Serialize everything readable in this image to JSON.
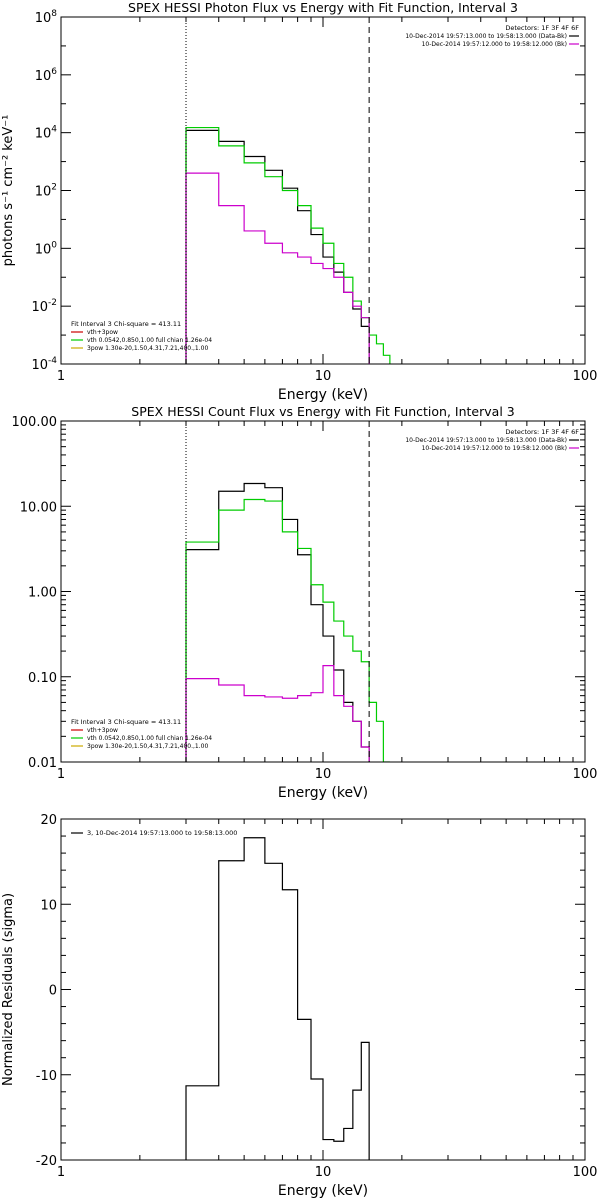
{
  "chart_data": [
    {
      "type": "line",
      "title": "SPEX HESSI Photon Flux vs Energy with Fit Function, Interval 3",
      "xlabel": "Energy (keV)",
      "ylabel": "photons s⁻¹ cm⁻² keV⁻¹",
      "xscale": "log",
      "yscale": "log",
      "xlim": [
        1,
        100
      ],
      "ylim": [
        0.0001,
        100000000
      ],
      "xticks": [
        {
          "v": 1,
          "t": "1"
        },
        {
          "v": 10,
          "t": "10"
        },
        {
          "v": 100,
          "t": "100"
        }
      ],
      "yticks": [
        {
          "v": 0.0001,
          "b": "10",
          "e": "-4"
        },
        {
          "v": 0.01,
          "b": "10",
          "e": "-2"
        },
        {
          "v": 1,
          "b": "10",
          "e": "0"
        },
        {
          "v": 100,
          "b": "10",
          "e": "2"
        },
        {
          "v": 10000,
          "b": "10",
          "e": "4"
        },
        {
          "v": 1000000,
          "b": "10",
          "e": "6"
        },
        {
          "v": 100000000,
          "b": "10",
          "e": "8"
        }
      ],
      "vlines": [
        {
          "x": 3,
          "style": "dotted"
        },
        {
          "x": 15,
          "style": "dashed"
        }
      ],
      "legend_right": {
        "placement": "top-right",
        "header": "Detectors: 1F 3F 4F 6F",
        "entries": [
          {
            "label": "10-Dec-2014 19:57:13.000 to 19:58:13.000 (Data-Bk)",
            "color": "#000000"
          },
          {
            "label": "10-Dec-2014 19:57:12.000 to 19:58:12.000 (Bk)",
            "color": "#cc00cc"
          }
        ]
      },
      "legend_left": {
        "placement": "bottom-left",
        "header": "Fit Interval 3   Chi-square = 413.11",
        "entries": [
          {
            "label": "vth+3pow",
            "color": "#cc0000"
          },
          {
            "label": "vth 0.0542,0.850,1.00  full chian 1.26e-04",
            "color": "#00cc00"
          },
          {
            "label": "3pow 1.30e-20,1.50,4.31,7.21,400.,1.00",
            "color": "#ccaa00"
          }
        ]
      },
      "series": [
        {
          "color": "#000000",
          "edges": [
            3,
            4,
            5,
            6,
            7,
            8,
            9,
            10,
            11,
            12,
            13,
            14,
            15
          ],
          "values": [
            12000,
            5000,
            1500,
            500,
            120,
            20,
            3,
            0.5,
            0.15,
            0.03,
            0.008,
            0.002
          ]
        },
        {
          "color": "#00cc00",
          "edges": [
            3,
            4,
            5,
            6,
            7,
            8,
            9,
            10,
            11,
            12,
            13,
            14,
            15,
            16,
            17,
            18
          ],
          "values": [
            15000,
            3500,
            900,
            300,
            100,
            30,
            5,
            1.5,
            0.3,
            0.1,
            0.015,
            0.004,
            0.001,
            0.0005,
            0.0002
          ]
        },
        {
          "color": "#cc00cc",
          "edges": [
            3,
            4,
            5,
            6,
            7,
            8,
            9,
            10,
            11,
            12,
            13,
            14,
            15
          ],
          "values": [
            400,
            30,
            4,
            1.5,
            0.7,
            0.5,
            0.3,
            0.2,
            0.1,
            0.03,
            0.01,
            0.004
          ]
        }
      ]
    },
    {
      "type": "line",
      "title": "SPEX HESSI Count Flux vs Energy with Fit Function, Interval 3",
      "xlabel": "Energy (keV)",
      "ylabel": "",
      "xscale": "log",
      "yscale": "log",
      "xlim": [
        1,
        100
      ],
      "ylim": [
        0.01,
        100
      ],
      "xticks": [
        {
          "v": 1,
          "t": "1"
        },
        {
          "v": 10,
          "t": "10"
        },
        {
          "v": 100,
          "t": "100"
        }
      ],
      "yticks": [
        {
          "v": 0.01,
          "t": "0.01"
        },
        {
          "v": 0.1,
          "t": "0.10"
        },
        {
          "v": 1,
          "t": "1.00"
        },
        {
          "v": 10,
          "t": "10.00"
        },
        {
          "v": 100,
          "t": "100.00"
        }
      ],
      "vlines": [
        {
          "x": 3,
          "style": "dotted"
        },
        {
          "x": 15,
          "style": "dashed"
        }
      ],
      "legend_right": {
        "placement": "top-right",
        "header": "Detectors: 1F 3F 4F 6F",
        "entries": [
          {
            "label": "10-Dec-2014 19:57:13.000 to 19:58:13.000 (Data-Bk)",
            "color": "#000000"
          },
          {
            "label": "10-Dec-2014 19:57:12.000 to 19:58:12.000 (Bk)",
            "color": "#cc00cc"
          }
        ]
      },
      "legend_left": {
        "placement": "bottom-left",
        "header": "Fit Interval 3   Chi-square = 413.11",
        "entries": [
          {
            "label": "vth+3pow",
            "color": "#cc0000"
          },
          {
            "label": "vth 0.0542,0.850,1.00  full chian 1.26e-04",
            "color": "#00cc00"
          },
          {
            "label": "3pow 1.30e-20,1.50,4.31,7.21,400.,1.00",
            "color": "#ccaa00"
          }
        ]
      },
      "series": [
        {
          "color": "#000000",
          "edges": [
            3,
            4,
            5,
            6,
            7,
            8,
            9,
            10,
            11,
            12,
            13,
            14,
            15
          ],
          "values": [
            3.1,
            15,
            18.5,
            16.5,
            7,
            2.7,
            0.7,
            0.3,
            0.12,
            0.05,
            0.03,
            0.015
          ]
        },
        {
          "color": "#00cc00",
          "edges": [
            3,
            4,
            5,
            6,
            7,
            8,
            9,
            10,
            11,
            12,
            13,
            14,
            15,
            16,
            17,
            18
          ],
          "values": [
            3.8,
            9,
            12,
            11.5,
            5,
            3.2,
            1.2,
            0.75,
            0.45,
            0.3,
            0.2,
            0.15,
            0.05,
            0.03,
            0.01
          ]
        },
        {
          "color": "#cc00cc",
          "edges": [
            3,
            4,
            5,
            6,
            7,
            8,
            9,
            10,
            11,
            12,
            13,
            14,
            15
          ],
          "values": [
            0.095,
            0.08,
            0.06,
            0.058,
            0.056,
            0.06,
            0.065,
            0.135,
            0.06,
            0.045,
            0.03,
            0.015
          ]
        }
      ]
    },
    {
      "type": "line",
      "title": "",
      "xlabel": "Energy (keV)",
      "ylabel": "Normalized Residuals (sigma)",
      "xscale": "log",
      "yscale": "linear",
      "xlim": [
        1,
        100
      ],
      "ylim": [
        -20,
        20
      ],
      "xticks": [
        {
          "v": 1,
          "t": "1"
        },
        {
          "v": 10,
          "t": "10"
        },
        {
          "v": 100,
          "t": "100"
        }
      ],
      "yticks": [
        {
          "v": -20,
          "t": "-20"
        },
        {
          "v": -10,
          "t": "-10"
        },
        {
          "v": 0,
          "t": "0"
        },
        {
          "v": 10,
          "t": "10"
        },
        {
          "v": 20,
          "t": "20"
        }
      ],
      "vlines": [],
      "legend_left": {
        "placement": "top-left",
        "header": "",
        "entries": [
          {
            "label": "3, 10-Dec-2014 19:57:13.000 to 19:58:13.000",
            "color": "#000000"
          }
        ]
      },
      "series": [
        {
          "color": "#000000",
          "edges": [
            3,
            4,
            5,
            6,
            7,
            8,
            9,
            10,
            11,
            12,
            13,
            14,
            15
          ],
          "values": [
            -11.3,
            15.1,
            17.8,
            14.8,
            11.7,
            -3.5,
            -10.5,
            -17.6,
            -17.8,
            -16.3,
            -11.8,
            -6.2
          ]
        }
      ]
    }
  ]
}
